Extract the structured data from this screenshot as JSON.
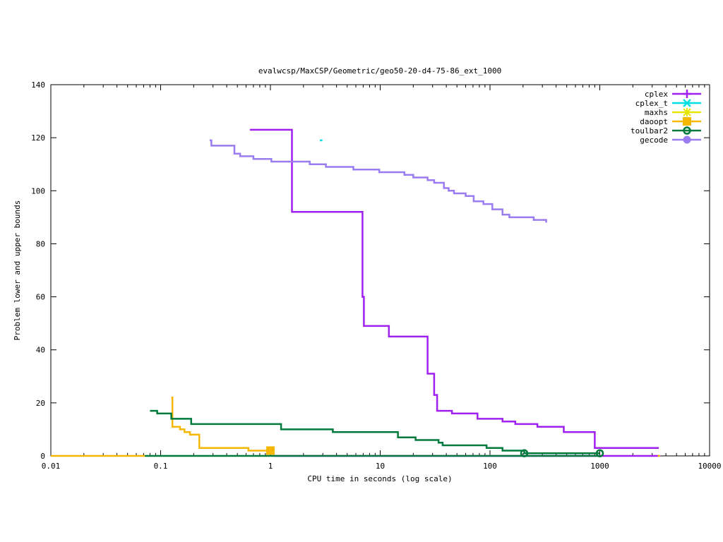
{
  "chart_data": {
    "type": "line",
    "title": "evalwcsp/MaxCSP/Geometric/geo50-20-d4-75-86_ext_1000",
    "xlabel": "CPU time in seconds (log scale)",
    "ylabel": "Problem lower and upper bounds",
    "xscale": "log",
    "xlim": [
      0.01,
      10000
    ],
    "ylim": [
      0,
      140
    ],
    "x_ticks": [
      0.01,
      0.1,
      1,
      10,
      100,
      1000,
      10000
    ],
    "x_tick_labels": [
      "0.01",
      "0.1",
      "1",
      "10",
      "100",
      "1000",
      "10000"
    ],
    "y_ticks": [
      0,
      20,
      40,
      60,
      80,
      100,
      120,
      140
    ],
    "y_tick_labels": [
      "0",
      "20",
      "40",
      "60",
      "80",
      "100",
      "120",
      "140"
    ],
    "legend_position": "top-right",
    "series": [
      {
        "name": "cplex",
        "color": "#a020f0",
        "marker": "plus",
        "step": true,
        "points": [
          [
            0.65,
            123
          ],
          [
            1.57,
            92
          ],
          [
            6.9,
            60
          ],
          [
            7.1,
            49
          ],
          [
            12,
            45
          ],
          [
            27,
            31
          ],
          [
            31,
            23
          ],
          [
            33,
            17
          ],
          [
            45,
            16
          ],
          [
            77,
            14
          ],
          [
            130,
            13
          ],
          [
            170,
            12
          ],
          [
            270,
            11
          ],
          [
            470,
            9
          ],
          [
            900,
            3
          ],
          [
            3450,
            3
          ]
        ]
      },
      {
        "name": "cplex",
        "color": "#a020f0",
        "marker": "plus",
        "step": true,
        "points": [
          [
            1.07,
            0
          ],
          [
            3450,
            0
          ]
        ]
      },
      {
        "name": "cplex_t",
        "color": "#00e0e0",
        "marker": "cross",
        "step": true,
        "points": [
          [
            2.82,
            119
          ],
          [
            2.98,
            119
          ]
        ]
      },
      {
        "name": "maxhs",
        "color": "#e6e600",
        "marker": "star",
        "step": true,
        "points": []
      },
      {
        "name": "daoopt",
        "color": "#f5b700",
        "marker": "square",
        "step": true,
        "points": [
          [
            0.125,
            22
          ],
          [
            0.128,
            11
          ],
          [
            0.15,
            10
          ],
          [
            0.165,
            9
          ],
          [
            0.185,
            8
          ],
          [
            0.225,
            3
          ],
          [
            0.63,
            2
          ],
          [
            1.0,
            2
          ]
        ]
      },
      {
        "name": "daoopt",
        "color": "#f5b700",
        "marker": "square",
        "step": true,
        "points": [
          [
            0.01,
            0
          ],
          [
            0.072,
            0
          ]
        ]
      },
      {
        "name": "toulbar2",
        "color": "#007a3d",
        "marker": "circle-open",
        "step": true,
        "points": [
          [
            0.08,
            17
          ],
          [
            0.093,
            16
          ],
          [
            0.125,
            14
          ],
          [
            0.19,
            12
          ],
          [
            1.25,
            10
          ],
          [
            3.7,
            9
          ],
          [
            14.5,
            7
          ],
          [
            21,
            6
          ],
          [
            34,
            5
          ],
          [
            37,
            4
          ],
          [
            93,
            3
          ],
          [
            130,
            2
          ],
          [
            205,
            1
          ],
          [
            1000,
            1
          ]
        ]
      },
      {
        "name": "toulbar2",
        "color": "#007a3d",
        "marker": "circle-open",
        "step": true,
        "points": [
          [
            0.072,
            0
          ],
          [
            1000,
            0
          ]
        ]
      },
      {
        "name": "gecode",
        "color": "#9b7cf0",
        "marker": "circle-filled",
        "step": true,
        "points": [
          [
            0.28,
            119
          ],
          [
            0.29,
            117
          ],
          [
            0.47,
            114
          ],
          [
            0.53,
            113
          ],
          [
            0.7,
            112
          ],
          [
            1.02,
            111
          ],
          [
            1.5,
            111
          ],
          [
            2.28,
            110
          ],
          [
            3.2,
            109
          ],
          [
            5.7,
            108
          ],
          [
            9.8,
            107
          ],
          [
            16.6,
            106
          ],
          [
            20,
            105
          ],
          [
            27,
            104
          ],
          [
            31,
            103
          ],
          [
            38,
            101
          ],
          [
            42,
            100
          ],
          [
            47,
            99
          ],
          [
            60,
            98
          ],
          [
            71,
            96
          ],
          [
            87,
            95
          ],
          [
            105,
            93
          ],
          [
            130,
            91
          ],
          [
            150,
            90
          ],
          [
            200,
            90
          ],
          [
            250,
            89
          ],
          [
            325,
            88
          ]
        ]
      }
    ]
  }
}
